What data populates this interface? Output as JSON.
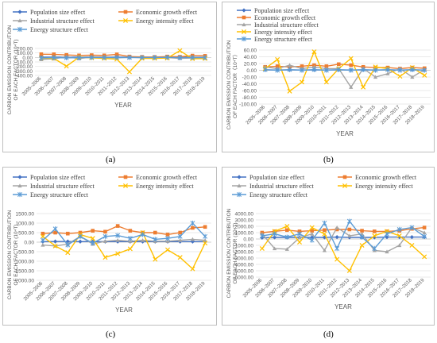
{
  "colors": {
    "population": "#4472c4",
    "economic": "#ed7d31",
    "industrial": "#a5a5a5",
    "intensity": "#ffc000",
    "energy": "#5b9bd5"
  },
  "panels": [
    {
      "caption": "(a)",
      "chart_data": {
        "type": "line",
        "ylabel": "CARBON EMISSION CONTRIBUTION OF EACH FACTOR (10⁴T)",
        "xlabel": "YEAR",
        "categories": [
          "2005–2006",
          "2006–2007",
          "2007–2008",
          "2008–2009",
          "2009–2010",
          "2010–2011",
          "2011–2012",
          "2012–2013",
          "2013–2014",
          "2014–2015",
          "2015–2016",
          "2016–2017",
          "2017–2018",
          "2018–2019"
        ],
        "ylim": [
          -400,
          200
        ],
        "yticks": [
          200,
          100,
          0,
          -100,
          -200,
          -300,
          -400
        ],
        "ytick_labels": [
          "200.00",
          "100.00",
          "0.00",
          "-100.00",
          "-200.00",
          "-300.00",
          "-400.00"
        ],
        "legend_position": "top",
        "series": [
          {
            "name": "Population size effect",
            "color_key": "population",
            "marker": "diamond",
            "values": [
              5,
              5,
              6,
              5,
              5,
              5,
              5,
              5,
              4,
              4,
              4,
              3,
              3,
              3
            ]
          },
          {
            "name": "Economic growth effect",
            "color_key": "economic",
            "marker": "square",
            "values": [
              72,
              70,
              55,
              45,
              50,
              45,
              68,
              20,
              12,
              10,
              20,
              15,
              40,
              35
            ]
          },
          {
            "name": "Industrial structure effect",
            "color_key": "industrial",
            "marker": "triangle",
            "values": [
              -45,
              -30,
              15,
              -25,
              10,
              5,
              -10,
              5,
              -8,
              -5,
              -5,
              -20,
              -12,
              -10
            ]
          },
          {
            "name": "Energy intensity effect",
            "color_key": "intensity",
            "marker": "x",
            "values": [
              -15,
              -20,
              -195,
              5,
              -10,
              -20,
              -40,
              -320,
              -20,
              -20,
              -15,
              150,
              -30,
              -25
            ]
          },
          {
            "name": "Energy structure effect",
            "color_key": "energy",
            "marker": "star",
            "values": [
              -10,
              -5,
              -10,
              -5,
              -2,
              -3,
              -2,
              -3,
              -2,
              -2,
              2,
              -5,
              -3,
              -5
            ]
          }
        ]
      }
    },
    {
      "caption": "(b)",
      "chart_data": {
        "type": "line",
        "ylabel": "CARBON EMISSION CONTRIBUTION OF EACH FACTOR（10⁴T）",
        "xlabel": "YEAR",
        "categories": [
          "2005–2006",
          "2006–2007",
          "2007–2008",
          "2008–2009",
          "2009–2010",
          "2010–2011",
          "2011–2012",
          "2012–2013",
          "2013–2014",
          "2014–2015",
          "2015–2016",
          "2016–2017",
          "2017–2018",
          "2018–2019"
        ],
        "ylim": [
          -100,
          60
        ],
        "yticks": [
          60,
          40,
          20,
          0,
          -20,
          -40,
          -60,
          -80,
          -100
        ],
        "ytick_labels": [
          "60.00",
          "40.00",
          "20.00",
          "0.00",
          "-20.00",
          "-40.00",
          "-60.00",
          "-80.00",
          "-100.00"
        ],
        "legend_position": "top",
        "series": [
          {
            "name": "Population size effect",
            "color_key": "population",
            "marker": "diamond",
            "values": [
              1,
              1,
              1,
              1,
              1,
              1,
              1,
              1,
              1,
              1,
              1,
              1,
              1,
              1
            ]
          },
          {
            "name": "Economic growth effect",
            "color_key": "economic",
            "marker": "square",
            "values": [
              10,
              12,
              10,
              12,
              15,
              12,
              18,
              15,
              10,
              8,
              8,
              5,
              8,
              6
            ]
          },
          {
            "name": "Industrial structure effect",
            "color_key": "industrial",
            "marker": "triangle",
            "values": [
              10,
              5,
              15,
              5,
              10,
              5,
              5,
              -50,
              5,
              -20,
              -10,
              5,
              -20,
              2
            ]
          },
          {
            "name": "Energy intensity effect",
            "color_key": "intensity",
            "marker": "x",
            "values": [
              5,
              32,
              -62,
              -35,
              55,
              -35,
              5,
              35,
              -50,
              10,
              5,
              -18,
              8,
              -15
            ]
          },
          {
            "name": "Energy structure effect",
            "color_key": "energy",
            "marker": "star",
            "values": [
              2,
              0,
              2,
              0,
              2,
              0,
              2,
              0,
              2,
              0,
              2,
              0,
              2,
              0
            ]
          }
        ]
      }
    },
    {
      "caption": "(c)",
      "chart_data": {
        "type": "line",
        "ylabel": "CARBON EMISSION CONTRIBUTION OF EACH FACTOR (10⁴T)",
        "xlabel": "YEAR",
        "categories": [
          "2005–2006",
          "2006–2007",
          "2007–2008",
          "2008–2009",
          "2009–2010",
          "2010–2011",
          "2011–2012",
          "2012–2013",
          "2013–2014",
          "2014–2015",
          "2015–2016",
          "2016–2017",
          "2017–2018",
          "2018–2019"
        ],
        "ylim": [
          -2000,
          1500
        ],
        "yticks": [
          1500,
          1000,
          500,
          0,
          -500,
          -1000,
          -1500,
          -2000
        ],
        "ytick_labels": [
          "1500.00",
          "1000.00",
          "500.00",
          "0.00",
          "-500.00",
          "-1000.00",
          "-1500.00",
          "-2000.00"
        ],
        "legend_position": "top",
        "series": [
          {
            "name": "Population size effect",
            "color_key": "population",
            "marker": "diamond",
            "values": [
              30,
              35,
              35,
              30,
              30,
              30,
              30,
              30,
              30,
              30,
              30,
              30,
              30,
              30
            ]
          },
          {
            "name": "Economic growth effect",
            "color_key": "economic",
            "marker": "square",
            "values": [
              450,
              500,
              450,
              500,
              600,
              550,
              850,
              600,
              500,
              500,
              400,
              500,
              750,
              800
            ]
          },
          {
            "name": "Industrial structure effect",
            "color_key": "industrial",
            "marker": "triangle",
            "values": [
              -150,
              -200,
              -100,
              300,
              -100,
              50,
              100,
              50,
              100,
              50,
              50,
              100,
              150,
              100
            ]
          },
          {
            "name": "Energy intensity effect",
            "color_key": "intensity",
            "marker": "x",
            "values": [
              300,
              -200,
              -550,
              400,
              200,
              -800,
              -600,
              -350,
              500,
              -900,
              -400,
              -800,
              -1400,
              -50
            ]
          },
          {
            "name": "Energy structure effect",
            "color_key": "energy",
            "marker": "star",
            "values": [
              100,
              700,
              -150,
              300,
              -50,
              300,
              350,
              200,
              400,
              150,
              200,
              300,
              1000,
              300
            ]
          }
        ]
      }
    },
    {
      "caption": "(d)",
      "chart_data": {
        "type": "line",
        "ylabel": "CARBON EMISSION CONTRIBUTION OF EACH FACTOR (10⁴T)",
        "xlabel": "YEAR",
        "categories": [
          "2005–2006",
          "2006–2007",
          "2007–2008",
          "2008–2009",
          "2009–2010",
          "2010–2011",
          "2011–2012",
          "2012–2013",
          "2013–2014",
          "2014–2015",
          "2015–2016",
          "2016–2017",
          "2017–2018",
          "2018–2019"
        ],
        "ylim": [
          -6000,
          4000
        ],
        "yticks": [
          4000,
          3000,
          2000,
          1000,
          0,
          -1000,
          -2000,
          -3000,
          -4000,
          -5000,
          -6000
        ],
        "ytick_labels": [
          "4000.00",
          "3000.00",
          "2000.00",
          "1000.00",
          "0.00",
          "-1000.00",
          "-2000.00",
          "-3000.00",
          "-4000.00",
          "-5000.00",
          "-6000.00"
        ],
        "legend_position": "top",
        "series": [
          {
            "name": "Population size effect",
            "color_key": "population",
            "marker": "diamond",
            "values": [
              200,
              250,
              250,
              250,
              250,
              250,
              300,
              250,
              250,
              250,
              300,
              300,
              300,
              300
            ]
          },
          {
            "name": "Economic growth effect",
            "color_key": "economic",
            "marker": "square",
            "values": [
              1000,
              1200,
              1400,
              1200,
              1300,
              1400,
              1500,
              1500,
              1300,
              1200,
              1200,
              1300,
              1600,
              1800
            ]
          },
          {
            "name": "Industrial structure effect",
            "color_key": "industrial",
            "marker": "triangle",
            "values": [
              800,
              -1500,
              -1600,
              200,
              800,
              -1800,
              1800,
              500,
              800,
              -1800,
              -2000,
              -1000,
              1800,
              1000
            ]
          },
          {
            "name": "Energy intensity effect",
            "color_key": "intensity",
            "marker": "x",
            "values": [
              -1500,
              1200,
              2000,
              -500,
              1800,
              800,
              -3200,
              -5000,
              -1000,
              500,
              1200,
              500,
              -1000,
              -2800
            ]
          },
          {
            "name": "Energy structure effect",
            "color_key": "energy",
            "marker": "star",
            "values": [
              500,
              800,
              300,
              800,
              -200,
              2500,
              -1500,
              2800,
              300,
              -1500,
              800,
              1500,
              1800,
              400
            ]
          }
        ]
      }
    }
  ]
}
